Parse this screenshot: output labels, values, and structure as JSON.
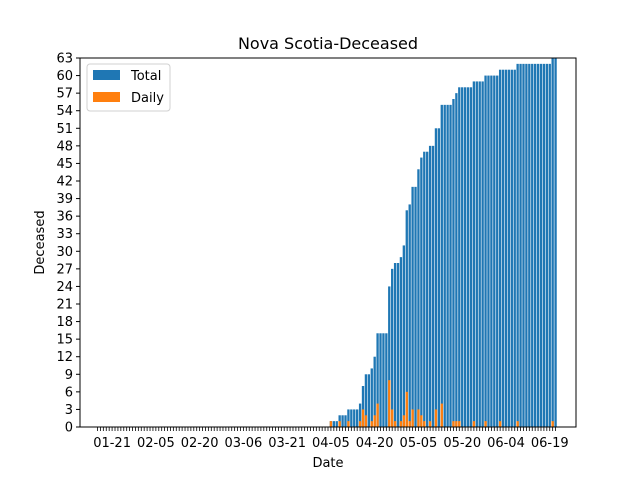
{
  "chart_data": {
    "type": "bar",
    "title": "Nova Scotia-Deceased",
    "xlabel": "Date",
    "ylabel": "Deceased",
    "start_date": "2020-01-16",
    "num_days": 158,
    "xlim_days": [
      -6,
      164
    ],
    "ylim": [
      0,
      63
    ],
    "yticks": [
      0,
      3,
      6,
      9,
      12,
      15,
      18,
      21,
      24,
      27,
      30,
      33,
      36,
      39,
      42,
      45,
      48,
      51,
      54,
      57,
      60,
      63
    ],
    "xticks": [
      {
        "day": 5,
        "label": "01-21"
      },
      {
        "day": 20,
        "label": "02-05"
      },
      {
        "day": 35,
        "label": "02-20"
      },
      {
        "day": 50,
        "label": "03-06"
      },
      {
        "day": 65,
        "label": "03-21"
      },
      {
        "day": 80,
        "label": "04-05"
      },
      {
        "day": 95,
        "label": "04-20"
      },
      {
        "day": 110,
        "label": "05-05"
      },
      {
        "day": 125,
        "label": "05-20"
      },
      {
        "day": 140,
        "label": "06-04"
      },
      {
        "day": 155,
        "label": "06-19"
      }
    ],
    "legend_position": "top-left",
    "grid": false,
    "series": [
      {
        "name": "Total",
        "color": "#1f77b4",
        "values": [
          0,
          0,
          0,
          0,
          0,
          0,
          0,
          0,
          0,
          0,
          0,
          0,
          0,
          0,
          0,
          0,
          0,
          0,
          0,
          0,
          0,
          0,
          0,
          0,
          0,
          0,
          0,
          0,
          0,
          0,
          0,
          0,
          0,
          0,
          0,
          0,
          0,
          0,
          0,
          0,
          0,
          0,
          0,
          0,
          0,
          0,
          0,
          0,
          0,
          0,
          0,
          0,
          0,
          0,
          0,
          0,
          0,
          0,
          0,
          0,
          0,
          0,
          0,
          0,
          0,
          0,
          0,
          0,
          0,
          0,
          0,
          0,
          0,
          0,
          0,
          0,
          0,
          0,
          0,
          0,
          1,
          1,
          1,
          2,
          2,
          2,
          3,
          3,
          3,
          3,
          4,
          7,
          9,
          9,
          10,
          12,
          16,
          16,
          16,
          16,
          24,
          27,
          28,
          28,
          29,
          31,
          37,
          38,
          41,
          41,
          44,
          46,
          47,
          47,
          48,
          48,
          51,
          51,
          55,
          55,
          55,
          55,
          56,
          57,
          58,
          58,
          58,
          58,
          58,
          59,
          59,
          59,
          59,
          60,
          60,
          60,
          60,
          60,
          61,
          61,
          61,
          61,
          61,
          61,
          62,
          62,
          62,
          62,
          62,
          62,
          62,
          62,
          62,
          62,
          62,
          62,
          63,
          63
        ]
      },
      {
        "name": "Daily",
        "color": "#ff7f0e",
        "values": [
          0,
          0,
          0,
          0,
          0,
          0,
          0,
          0,
          0,
          0,
          0,
          0,
          0,
          0,
          0,
          0,
          0,
          0,
          0,
          0,
          0,
          0,
          0,
          0,
          0,
          0,
          0,
          0,
          0,
          0,
          0,
          0,
          0,
          0,
          0,
          0,
          0,
          0,
          0,
          0,
          0,
          0,
          0,
          0,
          0,
          0,
          0,
          0,
          0,
          0,
          0,
          0,
          0,
          0,
          0,
          0,
          0,
          0,
          0,
          0,
          0,
          0,
          0,
          0,
          0,
          0,
          0,
          0,
          0,
          0,
          0,
          0,
          0,
          0,
          0,
          0,
          0,
          0,
          0,
          0,
          1,
          0,
          0,
          1,
          0,
          0,
          1,
          0,
          0,
          0,
          1,
          3,
          2,
          0,
          1,
          2,
          4,
          0,
          0,
          0,
          8,
          3,
          1,
          0,
          1,
          2,
          6,
          1,
          3,
          0,
          3,
          2,
          1,
          0,
          1,
          0,
          3,
          0,
          4,
          0,
          0,
          0,
          1,
          1,
          1,
          0,
          0,
          0,
          0,
          1,
          0,
          0,
          0,
          1,
          0,
          0,
          0,
          0,
          1,
          0,
          0,
          0,
          0,
          0,
          1,
          0,
          0,
          0,
          0,
          0,
          0,
          0,
          0,
          0,
          0,
          0,
          1,
          0
        ]
      }
    ]
  }
}
